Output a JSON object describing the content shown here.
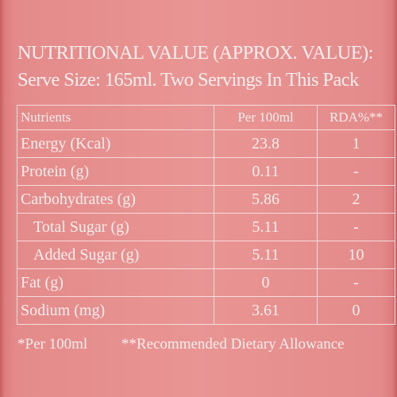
{
  "header": {
    "title": "NUTRITIONAL VALUE (APPROX. VALUE):",
    "serve_size": "Serve Size: 165ml. Two Servings In This Pack"
  },
  "table": {
    "columns": [
      "Nutrients",
      "Per 100ml",
      "RDA%**"
    ],
    "rows": [
      {
        "nutrient": "Energy (Kcal)",
        "per100": "23.8",
        "rda": "1",
        "indent": false
      },
      {
        "nutrient": "Protein (g)",
        "per100": "0.11",
        "rda": "-",
        "indent": false
      },
      {
        "nutrient": "Carbohydrates (g)",
        "per100": "5.86",
        "rda": "2",
        "indent": false
      },
      {
        "nutrient": "Total Sugar (g)",
        "per100": "5.11",
        "rda": "-",
        "indent": true
      },
      {
        "nutrient": "Added Sugar (g)",
        "per100": "5.11",
        "rda": "10",
        "indent": true
      },
      {
        "nutrient": "Fat (g)",
        "per100": "0",
        "rda": "-",
        "indent": false
      },
      {
        "nutrient": "Sodium (mg)",
        "per100": "3.61",
        "rda": "0",
        "indent": false
      }
    ]
  },
  "footer": {
    "note_per": "*Per 100ml",
    "note_rda": "**Recommended Dietary Allowance"
  },
  "colors": {
    "background": "#e99594",
    "text": "#fbeeed",
    "border": "#f6dcdc"
  }
}
